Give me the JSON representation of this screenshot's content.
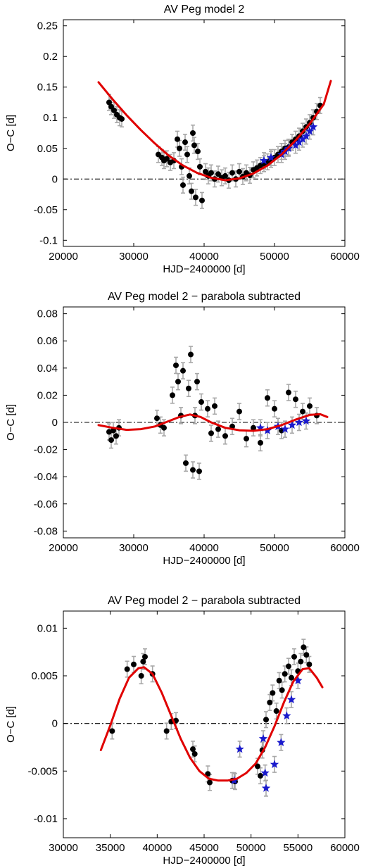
{
  "chart_data": [
    {
      "type": "scatter",
      "title": "AV Peg model 2",
      "xlabel": "HJD−2400000 [d]",
      "ylabel": "O−C [d]",
      "xlim": [
        20000,
        60000
      ],
      "ylim": [
        -0.11,
        0.26
      ],
      "xticks": [
        "20000",
        "30000",
        "40000",
        "50000",
        "60000"
      ],
      "yticks": [
        "-0.1",
        "-0.05",
        "0",
        "0.05",
        "0.1",
        "0.15",
        "0.2",
        "0.25"
      ],
      "ytick_values": [
        -0.1,
        -0.05,
        0,
        0.05,
        0.1,
        0.15,
        0.2,
        0.25
      ],
      "xtick_values": [
        20000,
        30000,
        40000,
        50000,
        60000
      ],
      "grid": false,
      "reference_line": 0,
      "colors": {
        "fit": "#e00000",
        "points": "#000000",
        "stars": "#1a1acc",
        "errorbars": "#a8a8a8"
      },
      "fit_curve": {
        "x": [
          25000,
          27000,
          29000,
          31000,
          33000,
          35000,
          37000,
          39000,
          41000,
          43000,
          45000,
          47000,
          49000,
          51000,
          53000,
          55000,
          57000,
          58000
        ],
        "y": [
          0.158,
          0.13,
          0.104,
          0.08,
          0.058,
          0.038,
          0.022,
          0.01,
          0.002,
          -0.002,
          0.001,
          0.009,
          0.022,
          0.04,
          0.063,
          0.09,
          0.122,
          0.16
        ]
      },
      "series": [
        {
          "marker": "circle",
          "x": [
            26500,
            26800,
            27200,
            27600,
            28000,
            28300,
            33500,
            34000,
            34300,
            34700,
            35200,
            35700,
            36200,
            36500,
            36800,
            37000,
            37300,
            37600,
            37900,
            38200,
            38400,
            38600,
            38800,
            39100,
            39400,
            39700,
            40200,
            40600,
            41000,
            41500,
            42000,
            42500,
            43000,
            43500,
            44000,
            44500,
            45000,
            45500,
            46000,
            46500,
            47000,
            47500,
            48000,
            48500,
            49000,
            49500,
            50000,
            50500,
            51000,
            51500,
            52000,
            52500,
            53000,
            53500,
            54000,
            54500,
            55000,
            55500,
            56000,
            56500
          ],
          "y": [
            0.125,
            0.118,
            0.112,
            0.105,
            0.1,
            0.098,
            0.04,
            0.035,
            0.03,
            0.033,
            0.027,
            0.03,
            0.065,
            0.05,
            0.02,
            -0.01,
            0.06,
            0.04,
            0.005,
            -0.02,
            0.075,
            0.055,
            -0.03,
            0.045,
            0.02,
            -0.035,
            0.012,
            0.005,
            0.01,
            0.0,
            0.008,
            0.002,
            0.005,
            -0.002,
            0.01,
            0.0,
            0.012,
            0.004,
            0.01,
            0.006,
            0.015,
            0.018,
            0.022,
            0.025,
            0.028,
            0.032,
            0.035,
            0.04,
            0.045,
            0.05,
            0.052,
            0.06,
            0.065,
            0.07,
            0.078,
            0.085,
            0.092,
            0.1,
            0.11,
            0.12
          ]
        },
        {
          "marker": "star",
          "x": [
            48500,
            49500,
            51000,
            51500,
            52000,
            53000,
            53500,
            54000,
            54500,
            55000,
            55500
          ],
          "y": [
            0.03,
            0.035,
            0.04,
            0.045,
            0.05,
            0.055,
            0.06,
            0.065,
            0.07,
            0.078,
            0.085
          ]
        }
      ]
    },
    {
      "type": "scatter",
      "title": "AV Peg model 2 − parabola subtracted",
      "xlabel": "HJD−2400000 [d]",
      "ylabel": "O−C [d]",
      "xlim": [
        20000,
        60000
      ],
      "ylim": [
        -0.085,
        0.085
      ],
      "xticks": [
        "20000",
        "30000",
        "40000",
        "50000",
        "60000"
      ],
      "yticks": [
        "-0.08",
        "-0.06",
        "-0.04",
        "-0.02",
        "0",
        "0.02",
        "0.04",
        "0.06",
        "0.08"
      ],
      "ytick_values": [
        -0.08,
        -0.06,
        -0.04,
        -0.02,
        0,
        0.02,
        0.04,
        0.06,
        0.08
      ],
      "xtick_values": [
        20000,
        30000,
        40000,
        50000,
        60000
      ],
      "grid": false,
      "reference_line": 0,
      "colors": {
        "fit": "#e00000",
        "points": "#000000",
        "stars": "#1a1acc",
        "errorbars": "#a8a8a8"
      },
      "fit_curve": {
        "x": [
          25000,
          27000,
          29000,
          31000,
          33000,
          35000,
          36500,
          38000,
          39500,
          41000,
          43000,
          45000,
          47000,
          49000,
          51000,
          53000,
          55000,
          56500,
          57500
        ],
        "y": [
          -0.002,
          -0.004,
          -0.0055,
          -0.005,
          -0.003,
          0.001,
          0.004,
          0.0058,
          0.004,
          0.0,
          -0.004,
          -0.0058,
          -0.0062,
          -0.005,
          -0.002,
          0.002,
          0.0055,
          0.006,
          0.004
        ]
      },
      "series": [
        {
          "marker": "circle",
          "x": [
            26500,
            26800,
            27100,
            27500,
            27900,
            33300,
            33800,
            34300,
            35500,
            36000,
            36300,
            36700,
            37000,
            37400,
            37800,
            38100,
            38400,
            38700,
            39000,
            39300,
            39600,
            40500,
            41000,
            41500,
            42000,
            43000,
            44000,
            45000,
            46000,
            47000,
            48000,
            49000,
            50000,
            51000,
            52000,
            53000,
            54000,
            55000,
            56000
          ],
          "y": [
            -0.007,
            -0.013,
            -0.006,
            -0.01,
            -0.004,
            0.003,
            -0.002,
            -0.004,
            0.02,
            0.042,
            0.03,
            0.005,
            0.038,
            -0.03,
            0.025,
            0.05,
            -0.035,
            0.005,
            0.03,
            -0.036,
            0.015,
            0.01,
            -0.008,
            0.012,
            -0.005,
            -0.01,
            -0.003,
            0.008,
            -0.012,
            -0.004,
            -0.015,
            0.018,
            0.01,
            -0.006,
            0.022,
            0.017,
            0.008,
            0.012,
            0.005
          ]
        },
        {
          "marker": "star",
          "x": [
            48000,
            49000,
            50500,
            51500,
            52500,
            53500,
            54500
          ],
          "y": [
            -0.004,
            -0.006,
            -0.003,
            -0.005,
            -0.002,
            0.0,
            0.001
          ]
        }
      ]
    },
    {
      "type": "scatter",
      "title": "AV Peg model 2 − parabola subtracted",
      "xlabel": "HJD−2400000 [d]",
      "ylabel": "O−C [d]",
      "xlim": [
        30000,
        60000
      ],
      "ylim": [
        -0.012,
        0.0118
      ],
      "xticks": [
        "30000",
        "35000",
        "40000",
        "45000",
        "50000",
        "55000",
        "60000"
      ],
      "yticks": [
        "-0.01",
        "-0.005",
        "0",
        "0.005",
        "0.01"
      ],
      "ytick_values": [
        -0.01,
        -0.005,
        0,
        0.005,
        0.01
      ],
      "xtick_values": [
        30000,
        35000,
        40000,
        45000,
        50000,
        55000,
        60000
      ],
      "grid": false,
      "reference_line": 0,
      "colors": {
        "fit": "#e00000",
        "points": "#000000",
        "stars": "#1a1acc",
        "errorbars": "#a8a8a8"
      },
      "fit_curve": {
        "x": [
          34000,
          35000,
          36000,
          37000,
          38000,
          38600,
          39500,
          40500,
          41500,
          42500,
          43500,
          44500,
          45500,
          46500,
          47500,
          48500,
          49500,
          50500,
          51500,
          52500,
          53500,
          54500,
          55500,
          56200,
          57000,
          57600
        ],
        "y": [
          -0.0028,
          -0.0002,
          0.0026,
          0.0048,
          0.0058,
          0.0059,
          0.0052,
          0.0032,
          0.0008,
          -0.0016,
          -0.0036,
          -0.005,
          -0.0058,
          -0.006,
          -0.006,
          -0.0058,
          -0.0052,
          -0.0042,
          -0.0025,
          -0.0003,
          0.0022,
          0.0044,
          0.0057,
          0.0058,
          0.0048,
          0.0038
        ]
      },
      "series": [
        {
          "marker": "circle",
          "x": [
            35200,
            36800,
            37500,
            38300,
            38500,
            38700,
            39500,
            41000,
            41500,
            42000,
            43800,
            44000,
            45400,
            45600,
            48000,
            48300,
            50700,
            51000,
            51200,
            51600,
            52000,
            52300,
            52700,
            53000,
            53300,
            53600,
            54000,
            54300,
            54600,
            55000,
            55300,
            55600,
            55900,
            56200
          ],
          "y": [
            -0.0008,
            0.0057,
            0.0062,
            0.005,
            0.0065,
            0.007,
            0.0052,
            -0.0008,
            0.0002,
            0.0003,
            -0.0027,
            -0.0032,
            -0.0053,
            -0.0062,
            -0.006,
            -0.0061,
            -0.0045,
            -0.0055,
            -0.0028,
            0.0004,
            0.0022,
            0.0032,
            0.0013,
            0.0045,
            0.0035,
            0.0052,
            0.006,
            0.0048,
            0.007,
            0.0055,
            0.0065,
            0.008,
            0.0072,
            0.0062
          ]
        },
        {
          "marker": "star",
          "x": [
            48200,
            48800,
            51300,
            51500,
            51600,
            52500,
            53200,
            53800,
            54300,
            55000
          ],
          "y": [
            -0.006,
            -0.0027,
            -0.0016,
            -0.0052,
            -0.0068,
            -0.0043,
            -0.002,
            0.0008,
            0.0025,
            0.0045
          ]
        }
      ]
    }
  ]
}
